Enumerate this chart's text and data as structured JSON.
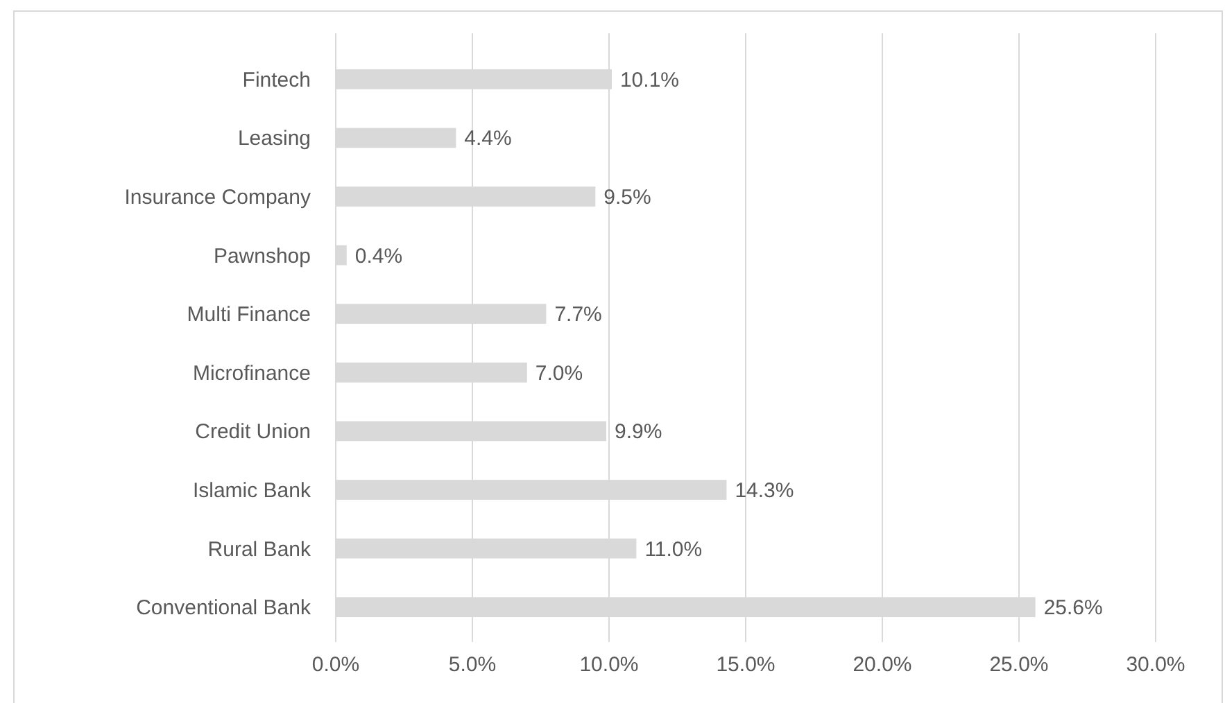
{
  "chart_data": {
    "type": "bar",
    "orientation": "horizontal",
    "categories": [
      "Fintech",
      "Leasing",
      "Insurance Company",
      "Pawnshop",
      "Multi Finance",
      "Microfinance",
      "Credit Union",
      "Islamic Bank",
      "Rural Bank",
      "Conventional Bank"
    ],
    "values": [
      10.1,
      4.4,
      9.5,
      0.4,
      7.7,
      7.0,
      9.9,
      14.3,
      11.0,
      25.6
    ],
    "value_labels": [
      "10.1%",
      "4.4%",
      "9.5%",
      "0.4%",
      "7.7%",
      "7.0%",
      "9.9%",
      "14.3%",
      "11.0%",
      "25.6%"
    ],
    "color": "#d9d9d9",
    "xlim": [
      0,
      30
    ],
    "xticks": [
      {
        "value": 0,
        "label": "0.0%"
      },
      {
        "value": 5,
        "label": "5.0%"
      },
      {
        "value": 10,
        "label": "10.0%"
      },
      {
        "value": 15,
        "label": "15.0%"
      },
      {
        "value": 20,
        "label": "20.0%"
      },
      {
        "value": 25,
        "label": "25.0%"
      },
      {
        "value": 30,
        "label": "30.0%"
      }
    ],
    "grid": "x"
  }
}
